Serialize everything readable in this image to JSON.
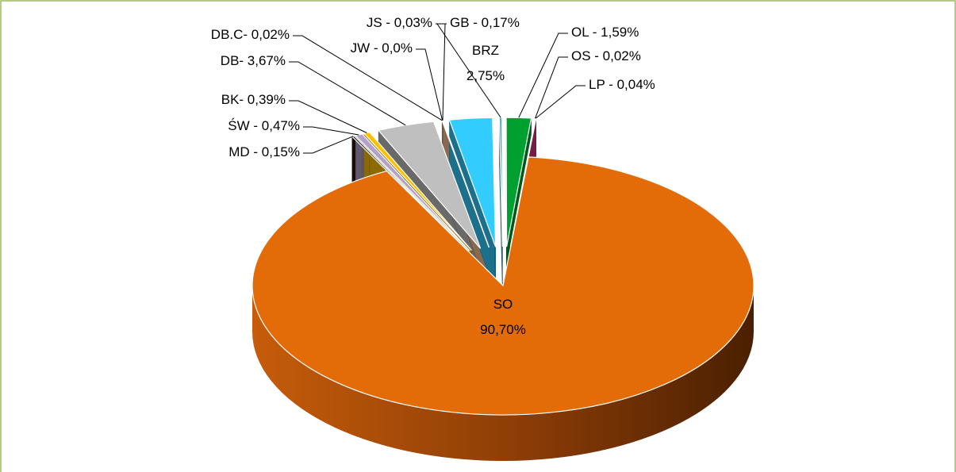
{
  "chart_data": {
    "type": "pie",
    "values": [
      3.67,
      0.02,
      0.0,
      0.03,
      2.75,
      0.17,
      1.59,
      0.02,
      0.04,
      90.7,
      0.15,
      0.47,
      0.39
    ],
    "value_labels": [
      "DB- 3,67%",
      "DB.C- 0,02%",
      "JW - 0,0%",
      "JS - 0,03%",
      "BRZ\n2,75%",
      "GB - 0,17%",
      "OL - 1,59%",
      "OS - 0,02%",
      "LP - 0,04%",
      "SO\n90,70%",
      "MD - 0,15%",
      "ŚW - 0,47%",
      "BK- 0,39%"
    ],
    "colors": [
      "#bfbfbf",
      "#fcd5b5",
      "#ffffff",
      "#fac090",
      "#33ccff",
      "#4bacc6",
      "#00a030",
      "#ffffff",
      "#d9357a",
      "#e36c09",
      "#2b1a0c",
      "#b3a2c7",
      "#ffc000"
    ]
  }
}
